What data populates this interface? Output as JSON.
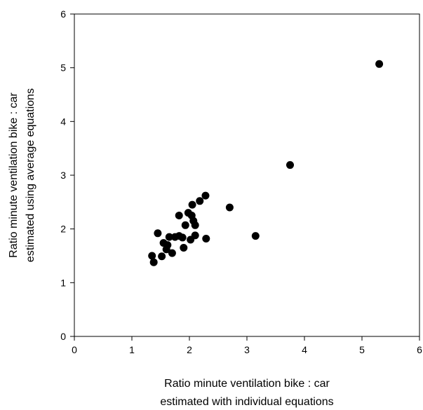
{
  "chart_data": {
    "type": "scatter",
    "title": "",
    "xlabel_lines": [
      "Ratio minute ventilation bike : car",
      "estimated with individual equations"
    ],
    "ylabel_lines": [
      "Ratio minute ventilation bike : car",
      "estimated using average equations"
    ],
    "xlim": [
      0,
      6
    ],
    "ylim": [
      0,
      6
    ],
    "xticks": [
      "0",
      "1",
      "2",
      "3",
      "4",
      "5",
      "6"
    ],
    "yticks": [
      "0",
      "1",
      "2",
      "3",
      "4",
      "5",
      "6"
    ],
    "grid": false,
    "marker_color": "#000000",
    "points": [
      {
        "x": 1.35,
        "y": 1.5
      },
      {
        "x": 1.38,
        "y": 1.38
      },
      {
        "x": 1.45,
        "y": 1.92
      },
      {
        "x": 1.52,
        "y": 1.49
      },
      {
        "x": 1.55,
        "y": 1.74
      },
      {
        "x": 1.6,
        "y": 1.62
      },
      {
        "x": 1.62,
        "y": 1.7
      },
      {
        "x": 1.65,
        "y": 1.85
      },
      {
        "x": 1.7,
        "y": 1.55
      },
      {
        "x": 1.75,
        "y": 1.85
      },
      {
        "x": 1.82,
        "y": 1.87
      },
      {
        "x": 1.82,
        "y": 2.25
      },
      {
        "x": 1.88,
        "y": 1.84
      },
      {
        "x": 1.9,
        "y": 1.65
      },
      {
        "x": 1.93,
        "y": 2.07
      },
      {
        "x": 1.98,
        "y": 2.3
      },
      {
        "x": 2.02,
        "y": 1.8
      },
      {
        "x": 2.04,
        "y": 2.25
      },
      {
        "x": 2.05,
        "y": 2.45
      },
      {
        "x": 2.07,
        "y": 2.15
      },
      {
        "x": 2.1,
        "y": 2.07
      },
      {
        "x": 2.1,
        "y": 1.88
      },
      {
        "x": 2.18,
        "y": 2.52
      },
      {
        "x": 2.28,
        "y": 2.62
      },
      {
        "x": 2.29,
        "y": 1.82
      },
      {
        "x": 2.7,
        "y": 2.4
      },
      {
        "x": 3.15,
        "y": 1.87
      },
      {
        "x": 3.75,
        "y": 3.19
      },
      {
        "x": 5.3,
        "y": 5.07
      }
    ]
  }
}
